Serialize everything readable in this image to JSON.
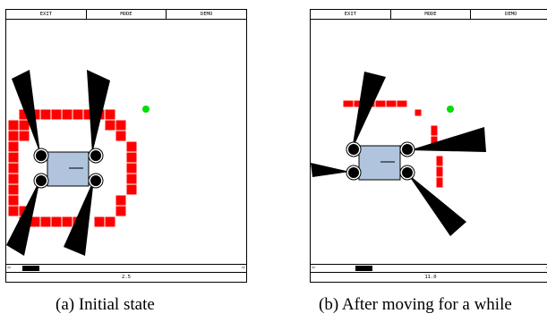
{
  "panels": [
    {
      "menu": [
        "EXIT",
        "MODE",
        "DEMO"
      ],
      "status": "2.5",
      "caption": "(a) Initial state"
    },
    {
      "menu": [
        "EXIT",
        "MODE",
        "DEMO"
      ],
      "status": "11.0",
      "caption": "(b) After moving for a while"
    }
  ],
  "colors": {
    "obstacle": "#ff0000",
    "goal": "#00dd00",
    "robot_body": "#b0c4de",
    "sensor": "#000000"
  },
  "icons": {
    "scroll_left": "⇦",
    "scroll_right": "⇨"
  }
}
